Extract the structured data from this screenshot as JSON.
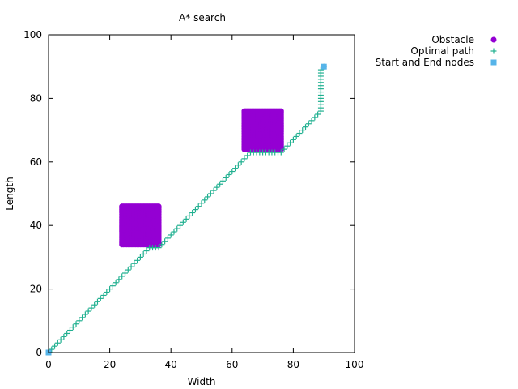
{
  "chart_data": {
    "type": "scatter",
    "title": "A* search",
    "xlabel": "Width",
    "ylabel": "Length",
    "xlim": [
      0,
      100
    ],
    "ylim": [
      0,
      100
    ],
    "xticks": [
      0,
      20,
      40,
      60,
      80,
      100
    ],
    "yticks": [
      0,
      20,
      40,
      60,
      80,
      100
    ],
    "grid": false,
    "legend_position": "top-right, outside plot",
    "series": [
      {
        "name": "Obstacle",
        "marker": "filled-circle",
        "color": "#9400d3",
        "regions": [
          {
            "x_range": [
              24,
              36
            ],
            "y_range": [
              34,
              46
            ]
          },
          {
            "x_range": [
              64,
              76
            ],
            "y_range": [
              64,
              76
            ]
          }
        ]
      },
      {
        "name": "Optimal path",
        "marker": "plus",
        "color": "#20b090",
        "points": [
          [
            0,
            0
          ],
          [
            1,
            1
          ],
          [
            2,
            2
          ],
          [
            3,
            3
          ],
          [
            4,
            4
          ],
          [
            5,
            5
          ],
          [
            6,
            6
          ],
          [
            7,
            7
          ],
          [
            8,
            8
          ],
          [
            9,
            9
          ],
          [
            10,
            10
          ],
          [
            11,
            11
          ],
          [
            12,
            12
          ],
          [
            13,
            13
          ],
          [
            14,
            14
          ],
          [
            15,
            15
          ],
          [
            16,
            16
          ],
          [
            17,
            17
          ],
          [
            18,
            18
          ],
          [
            19,
            19
          ],
          [
            20,
            20
          ],
          [
            21,
            21
          ],
          [
            22,
            22
          ],
          [
            23,
            23
          ],
          [
            24,
            24
          ],
          [
            25,
            25
          ],
          [
            26,
            26
          ],
          [
            27,
            27
          ],
          [
            28,
            28
          ],
          [
            29,
            29
          ],
          [
            30,
            30
          ],
          [
            31,
            31
          ],
          [
            32,
            32
          ],
          [
            33,
            33
          ],
          [
            34,
            33
          ],
          [
            35,
            33
          ],
          [
            36,
            33
          ],
          [
            37,
            34
          ],
          [
            38,
            35
          ],
          [
            39,
            36
          ],
          [
            40,
            37
          ],
          [
            41,
            38
          ],
          [
            42,
            39
          ],
          [
            43,
            40
          ],
          [
            44,
            41
          ],
          [
            45,
            42
          ],
          [
            46,
            43
          ],
          [
            47,
            44
          ],
          [
            48,
            45
          ],
          [
            49,
            46
          ],
          [
            50,
            47
          ],
          [
            51,
            48
          ],
          [
            52,
            49
          ],
          [
            53,
            50
          ],
          [
            54,
            51
          ],
          [
            55,
            52
          ],
          [
            56,
            53
          ],
          [
            57,
            54
          ],
          [
            58,
            55
          ],
          [
            59,
            56
          ],
          [
            60,
            57
          ],
          [
            61,
            58
          ],
          [
            62,
            59
          ],
          [
            63,
            60
          ],
          [
            64,
            61
          ],
          [
            65,
            62
          ],
          [
            66,
            63
          ],
          [
            67,
            63
          ],
          [
            68,
            63
          ],
          [
            69,
            63
          ],
          [
            70,
            63
          ],
          [
            71,
            63
          ],
          [
            72,
            63
          ],
          [
            73,
            63
          ],
          [
            74,
            63
          ],
          [
            75,
            63
          ],
          [
            76,
            63
          ],
          [
            77,
            64
          ],
          [
            78,
            65
          ],
          [
            79,
            66
          ],
          [
            80,
            67
          ],
          [
            81,
            68
          ],
          [
            82,
            69
          ],
          [
            83,
            70
          ],
          [
            84,
            71
          ],
          [
            85,
            72
          ],
          [
            86,
            73
          ],
          [
            87,
            74
          ],
          [
            88,
            75
          ],
          [
            89,
            76
          ],
          [
            89,
            77
          ],
          [
            89,
            78
          ],
          [
            89,
            79
          ],
          [
            89,
            80
          ],
          [
            89,
            81
          ],
          [
            89,
            82
          ],
          [
            89,
            83
          ],
          [
            89,
            84
          ],
          [
            89,
            85
          ],
          [
            89,
            86
          ],
          [
            89,
            87
          ],
          [
            89,
            88
          ],
          [
            89,
            89
          ],
          [
            90,
            90
          ]
        ]
      },
      {
        "name": "Start and End nodes",
        "marker": "filled-square",
        "color": "#56b4e9",
        "points": [
          [
            0,
            0
          ],
          [
            90,
            90
          ]
        ]
      }
    ]
  }
}
